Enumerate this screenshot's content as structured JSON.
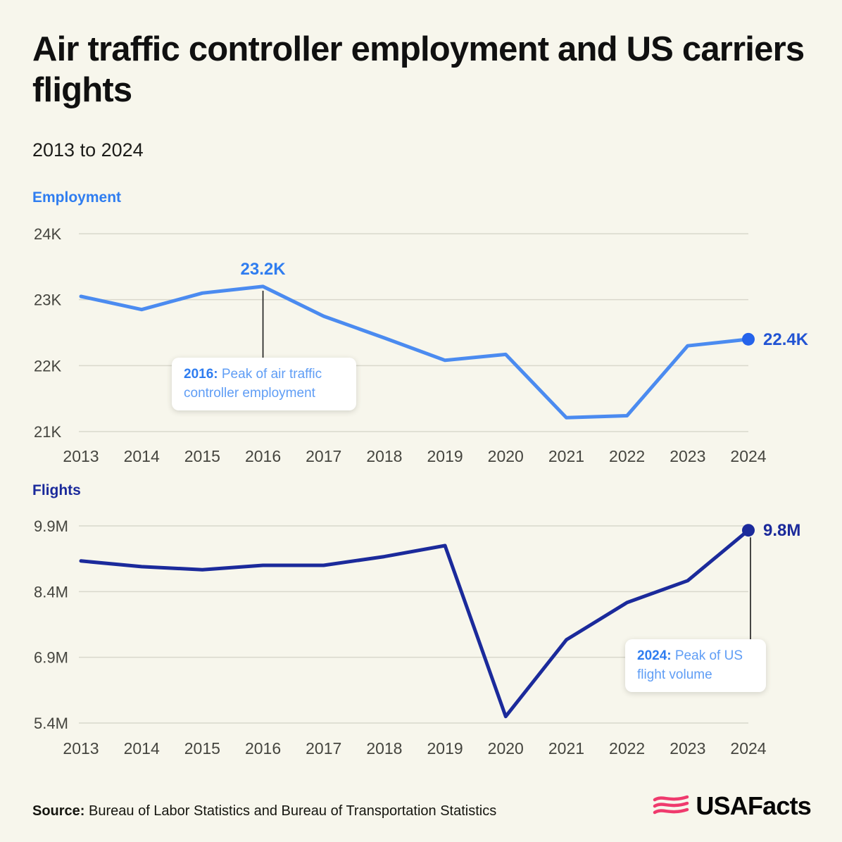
{
  "page": {
    "title": "Air traffic controller employment and US carriers flights",
    "subtitle": "2013 to 2024"
  },
  "footer": {
    "source_label": "Source:",
    "source_text": " Bureau of Labor Statistics and Bureau of Transportation Statistics",
    "logo_text": "USAFacts",
    "logo_icon": "usafacts-flag-icon"
  },
  "colors": {
    "background": "#f7f6ec",
    "employment_line": "#4b8bf0",
    "employment_accent": "#2563eb",
    "employment_label": "#2f7df0",
    "employment_end_label": "#2254d3",
    "flights_line": "#1b2a9b",
    "grid": "#d9d8cc",
    "axis_text": "#45453f",
    "callout_strong": "#2f7df0",
    "callout_light": "#5f9df5",
    "connector": "#1a1a1a",
    "logo_pink": "#ef3a6d"
  },
  "chart_data": [
    {
      "type": "line",
      "title": "Employment",
      "unit": "thousands of air traffic controllers",
      "x": [
        2013,
        2014,
        2015,
        2016,
        2017,
        2018,
        2019,
        2020,
        2021,
        2022,
        2023,
        2024
      ],
      "values": [
        23.05,
        22.85,
        23.1,
        23.2,
        22.75,
        22.42,
        22.08,
        22.17,
        21.21,
        21.24,
        22.3,
        22.4
      ],
      "ylim": [
        21,
        24
      ],
      "yticks": [
        {
          "value": 24,
          "label": "24K"
        },
        {
          "value": 23,
          "label": "23K"
        },
        {
          "value": 22,
          "label": "22K"
        },
        {
          "value": 21,
          "label": "21K"
        }
      ],
      "grid": true,
      "legend_position": "none",
      "peak_annotation": {
        "x_index": 3,
        "label": "23.2K"
      },
      "end_annotation": {
        "x_index": 11,
        "label": "22.4K"
      },
      "callout": {
        "strong": "2016:",
        "text": " Peak of air traffic controller employment"
      }
    },
    {
      "type": "line",
      "title": "Flights",
      "unit": "millions of US carrier flights",
      "x": [
        2013,
        2014,
        2015,
        2016,
        2017,
        2018,
        2019,
        2020,
        2021,
        2022,
        2023,
        2024
      ],
      "values": [
        9.1,
        8.97,
        8.9,
        9.0,
        9.0,
        9.2,
        9.45,
        5.55,
        7.3,
        8.15,
        8.65,
        9.8
      ],
      "ylim": [
        5.4,
        9.9
      ],
      "yticks": [
        {
          "value": 9.9,
          "label": "9.9M"
        },
        {
          "value": 8.4,
          "label": "8.4M"
        },
        {
          "value": 6.9,
          "label": "6.9M"
        },
        {
          "value": 5.4,
          "label": "5.4M"
        }
      ],
      "grid": true,
      "legend_position": "none",
      "end_annotation": {
        "x_index": 11,
        "label": "9.8M"
      },
      "callout": {
        "strong": "2024:",
        "text": " Peak of US flight volume"
      }
    }
  ]
}
